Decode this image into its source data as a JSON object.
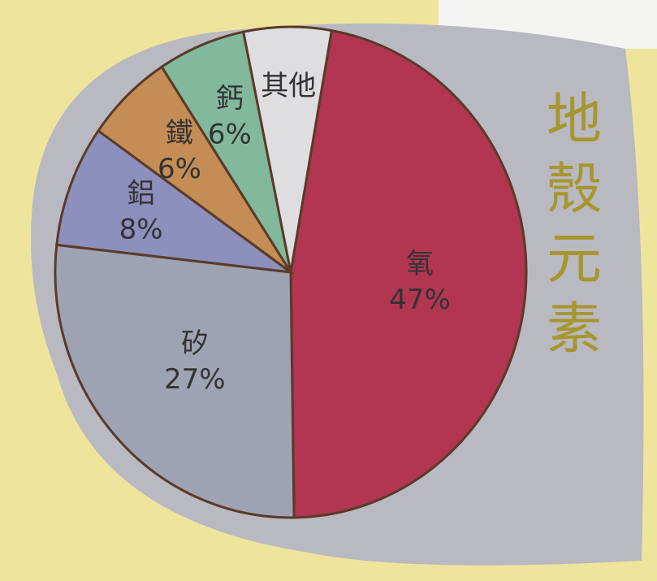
{
  "chart_data": {
    "type": "pie",
    "title": "地殼元素",
    "categories": [
      "氧",
      "矽",
      "鋁",
      "鐵",
      "鈣",
      "其他"
    ],
    "values": [
      47,
      27,
      8,
      6,
      6,
      6
    ],
    "value_labels": [
      "47%",
      "27%",
      "8%",
      "6%",
      "6%",
      null
    ],
    "colors": [
      "#b23552",
      "#9ea3b4",
      "#8d8fbd",
      "#c48d55",
      "#82b99c",
      "#dedde0"
    ]
  }
}
